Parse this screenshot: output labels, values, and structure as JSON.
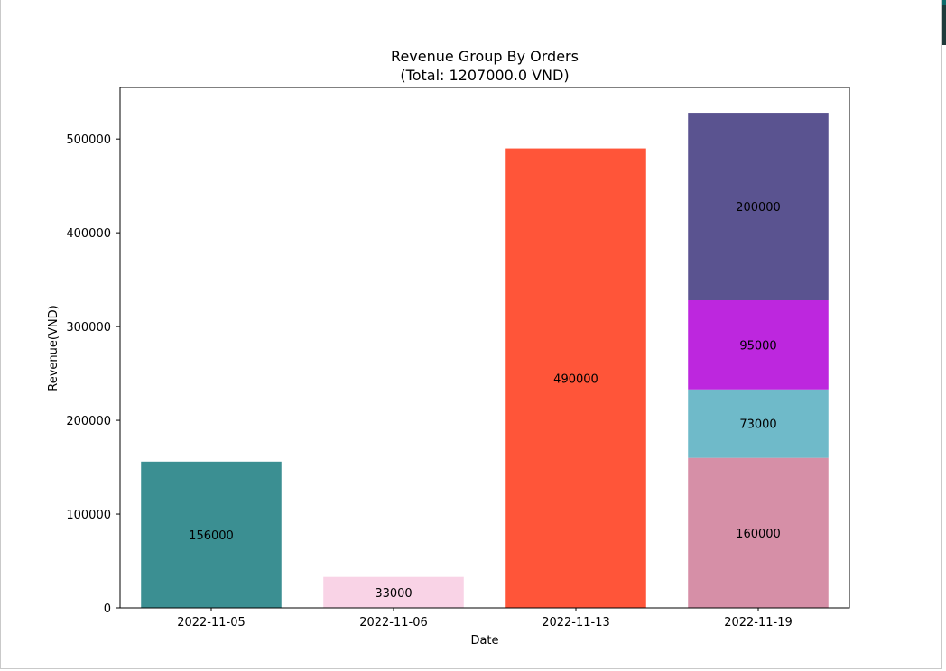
{
  "window": {
    "accent": "#0d6b6b"
  },
  "chart_data": {
    "type": "bar",
    "stacked": true,
    "title": "Revenue Group By Orders",
    "subtitle": "(Total: 1207000.0 VND)",
    "xlabel": "Date",
    "ylabel": "Revenue(VND)",
    "categories": [
      "2022-11-05",
      "2022-11-06",
      "2022-11-13",
      "2022-11-19"
    ],
    "ylim": [
      0,
      555000
    ],
    "yticks": [
      0,
      100000,
      200000,
      300000,
      400000,
      500000
    ],
    "grid": false,
    "legend": "none",
    "stacks": [
      [
        {
          "value": 156000,
          "color": "#3b8f92"
        }
      ],
      [
        {
          "value": 33000,
          "color": "#f9d3e6"
        }
      ],
      [
        {
          "value": 490000,
          "color": "#ff5539"
        }
      ],
      [
        {
          "value": 160000,
          "color": "#d68fa7"
        },
        {
          "value": 73000,
          "color": "#6fbac9"
        },
        {
          "value": 95000,
          "color": "#bd27de"
        },
        {
          "value": 200000,
          "color": "#5a5390"
        }
      ]
    ]
  }
}
